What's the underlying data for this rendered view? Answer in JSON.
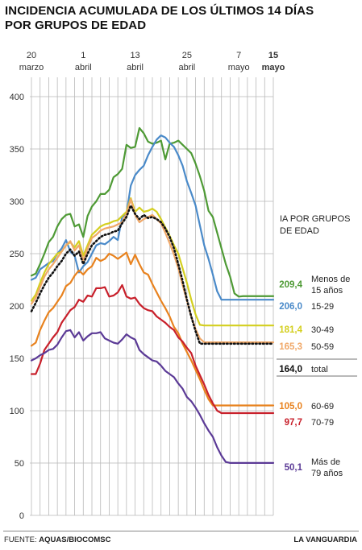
{
  "title": {
    "line1": "INCIDENCIA ACUMULADA DE LOS ÚLTIMOS 14 DÍAS",
    "line2": "POR GRUPOS DE EDAD"
  },
  "footer": {
    "source_label": "FUENTE:",
    "source": "AQUAS/BIOCOMSC",
    "brand": "LA VANGUARDIA"
  },
  "chart_data": {
    "type": "line",
    "xlabel": "",
    "ylabel": "",
    "ylim": [
      0,
      400
    ],
    "yticks": [
      0,
      50,
      100,
      150,
      200,
      250,
      300,
      350,
      400
    ],
    "grid": true,
    "x": [
      "20 mar",
      "21 mar",
      "22 mar",
      "23 mar",
      "24 mar",
      "25 mar",
      "26 mar",
      "27 mar",
      "28 mar",
      "29 mar",
      "30 mar",
      "31 mar",
      "1 abr",
      "2 abr",
      "3 abr",
      "4 abr",
      "5 abr",
      "6 abr",
      "7 abr",
      "8 abr",
      "9 abr",
      "10 abr",
      "11 abr",
      "12 abr",
      "13 abr",
      "14 abr",
      "15 abr",
      "16 abr",
      "17 abr",
      "18 abr",
      "19 abr",
      "20 abr",
      "21 abr",
      "22 abr",
      "23 abr",
      "24 abr",
      "25 abr",
      "26 abr",
      "27 abr",
      "28 abr",
      "29 abr",
      "30 abr",
      "1 may",
      "2 may",
      "3 may",
      "4 may",
      "5 may",
      "6 may",
      "7 may",
      "8 may",
      "9 may",
      "10 may",
      "11 may",
      "12 may",
      "13 may",
      "14 may",
      "15 may"
    ],
    "x_ticks": [
      {
        "index": 0,
        "line1": "20",
        "line2": "marzo",
        "bold": false
      },
      {
        "index": 12,
        "line1": "1",
        "line2": "abril",
        "bold": false
      },
      {
        "index": 24,
        "line1": "13",
        "line2": "abril",
        "bold": false
      },
      {
        "index": 36,
        "line1": "25",
        "line2": "abril",
        "bold": false
      },
      {
        "index": 48,
        "line1": "7",
        "line2": "mayo",
        "bold": false
      },
      {
        "index": 56,
        "line1": "15",
        "line2": "mayo",
        "bold": true
      }
    ],
    "legend_title": [
      "IA POR GRUPOS",
      "DE EDAD"
    ],
    "series": [
      {
        "name": "Menos de 15 años",
        "label_lines": [
          "Menos de",
          "15 años"
        ],
        "color": "#4e9a35",
        "dash": false,
        "final_label": "209,4",
        "values": [
          229,
          231,
          240,
          250,
          261,
          266,
          276,
          283,
          287,
          288,
          276,
          278,
          266,
          286,
          295,
          300,
          307,
          307,
          311,
          323,
          326,
          331,
          354,
          351,
          352,
          370,
          365,
          357,
          355,
          356,
          358,
          340,
          355,
          356,
          358,
          354,
          350,
          346,
          336,
          324,
          310,
          291,
          285,
          270,
          255,
          240,
          228,
          212,
          209,
          209.4,
          209.4,
          209.4,
          209.4,
          209.4,
          209.4,
          209.4,
          209.4
        ]
      },
      {
        "name": "15-29",
        "label_lines": [
          "15-29"
        ],
        "color": "#4a8ac9",
        "dash": false,
        "final_label": "206,0",
        "values": [
          225,
          227,
          235,
          238,
          241,
          243,
          250,
          255,
          263,
          252,
          248,
          232,
          238,
          242,
          250,
          258,
          260,
          259,
          262,
          266,
          263,
          285,
          288,
          315,
          325,
          330,
          334,
          344,
          352,
          359,
          363,
          361,
          356,
          352,
          344,
          334,
          319,
          308,
          296,
          277,
          258,
          245,
          230,
          214,
          206,
          206.0,
          206.0,
          206.0,
          206.0,
          206.0,
          206.0,
          206.0,
          206.0,
          206.0,
          206.0,
          206.0,
          206.0
        ]
      },
      {
        "name": "30-49",
        "label_lines": [
          "30-49"
        ],
        "color": "#d4cf1f",
        "dash": false,
        "final_label": "181,4",
        "values": [
          205,
          211,
          222,
          232,
          240,
          245,
          250,
          252,
          258,
          261,
          256,
          262,
          248,
          258,
          268,
          272,
          276,
          278,
          279,
          281,
          282,
          286,
          290,
          303,
          290,
          294,
          290,
          291,
          293,
          290,
          283,
          275,
          267,
          258,
          250,
          236,
          222,
          206,
          192,
          182,
          181.4,
          181.4,
          181.4,
          181.4,
          181.4,
          181.4,
          181.4,
          181.4,
          181.4,
          181.4,
          181.4,
          181.4,
          181.4,
          181.4,
          181.4,
          181.4,
          181.4
        ]
      },
      {
        "name": "50-59",
        "label_lines": [
          "50-59"
        ],
        "color": "#f0a868",
        "dash": false,
        "final_label": "165,3",
        "values": [
          202,
          208,
          218,
          228,
          235,
          240,
          246,
          252,
          258,
          262,
          253,
          258,
          243,
          255,
          265,
          268,
          272,
          274,
          275,
          276,
          278,
          280,
          288,
          302,
          287,
          280,
          283,
          285,
          287,
          283,
          279,
          270,
          260,
          249,
          236,
          220,
          205,
          190,
          178,
          169,
          165.3,
          165.3,
          165.3,
          165.3,
          165.3,
          165.3,
          165.3,
          165.3,
          165.3,
          165.3,
          165.3,
          165.3,
          165.3,
          165.3,
          165.3,
          165.3,
          165.3
        ]
      },
      {
        "name": "total",
        "label_lines": [
          "total"
        ],
        "color": "#111111",
        "dash": true,
        "final_label": "164,0",
        "values": [
          195,
          203,
          212,
          220,
          227,
          232,
          238,
          243,
          250,
          254,
          248,
          252,
          240,
          250,
          258,
          262,
          266,
          268,
          269,
          271,
          272,
          279,
          285,
          296,
          288,
          283,
          287,
          284,
          285,
          283,
          280,
          274,
          266,
          255,
          240,
          224,
          206,
          190,
          176,
          164,
          164.0,
          164.0,
          164.0,
          164.0,
          164.0,
          164.0,
          164.0,
          164.0,
          164.0,
          164.0,
          164.0,
          164.0,
          164.0,
          164.0,
          164.0,
          164.0,
          164.0
        ]
      },
      {
        "name": "60-69",
        "label_lines": [
          "60-69"
        ],
        "color": "#e8821e",
        "dash": false,
        "final_label": "105,0",
        "values": [
          162,
          165,
          177,
          186,
          194,
          198,
          204,
          210,
          219,
          222,
          229,
          234,
          230,
          235,
          238,
          246,
          243,
          245,
          250,
          248,
          245,
          248,
          251,
          240,
          249,
          240,
          232,
          230,
          221,
          213,
          205,
          198,
          190,
          180,
          174,
          164,
          156,
          148,
          139,
          130,
          120,
          111,
          105,
          105.0,
          105.0,
          105.0,
          105.0,
          105.0,
          105.0,
          105.0,
          105.0,
          105.0,
          105.0,
          105.0,
          105.0,
          105.0,
          105.0
        ]
      },
      {
        "name": "70-79",
        "label_lines": [
          "70-79"
        ],
        "color": "#c8202b",
        "dash": false,
        "final_label": "97,7",
        "values": [
          135,
          135,
          145,
          158,
          164,
          170,
          175,
          184,
          190,
          196,
          199,
          206,
          204,
          210,
          209,
          217,
          217,
          218,
          209,
          210,
          213,
          220,
          209,
          207,
          208,
          202,
          198,
          196,
          195,
          190,
          187,
          184,
          180,
          177,
          170,
          166,
          160,
          155,
          143,
          134,
          125,
          115,
          107,
          100,
          97.7,
          97.7,
          97.7,
          97.7,
          97.7,
          97.7,
          97.7,
          97.7,
          97.7,
          97.7,
          97.7,
          97.7,
          97.7
        ]
      },
      {
        "name": "Más de 79 años",
        "label_lines": [
          "Más de",
          "79 años"
        ],
        "color": "#5b3a96",
        "dash": false,
        "final_label": "50,1",
        "values": [
          148,
          150,
          153,
          155,
          158,
          159,
          163,
          170,
          176,
          177,
          170,
          175,
          167,
          171,
          174,
          174,
          175,
          169,
          167,
          165,
          164,
          168,
          173,
          170,
          168,
          158,
          154,
          151,
          148,
          147,
          143,
          138,
          135,
          132,
          126,
          121,
          113,
          109,
          103,
          96,
          88,
          81,
          75,
          65,
          57,
          51,
          50.1,
          50.1,
          50.1,
          50.1,
          50.1,
          50.1,
          50.1,
          50.1,
          50.1,
          50.1,
          50.1
        ]
      }
    ]
  }
}
